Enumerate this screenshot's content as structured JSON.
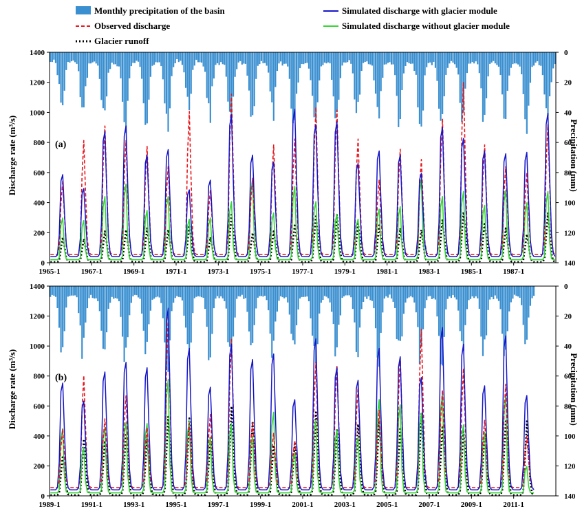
{
  "legend": {
    "precip": "Monthly precipitation of the basin",
    "observed": "Observed discharge",
    "glacier": "Glacier runoff",
    "sim_with": "Simulated discharge with glacier module",
    "sim_without": "Simulated discharge without glacier module"
  },
  "colors": {
    "precip": "#3a8fd0",
    "observed": "#e8141a",
    "sim_with": "#1414c8",
    "sim_without": "#33d633",
    "glacier": "#000000"
  },
  "chart_data": [
    {
      "panel": "(a)",
      "type": "line",
      "ylabel": "Discharge rate (m³/s)",
      "y2label": "Precipitation (mm)",
      "ylim": [
        0,
        1400
      ],
      "y2lim": [
        0,
        140
      ],
      "y2_inverted": true,
      "yticks": [
        "0",
        "200",
        "400",
        "600",
        "800",
        "1000",
        "1200",
        "1400"
      ],
      "y2ticks": [
        "0",
        "20",
        "40",
        "60",
        "80",
        "100",
        "120",
        "140"
      ],
      "x_range": [
        "1965-1",
        "1988-12"
      ],
      "xtick_labels": [
        "1965-1",
        "1967-1",
        "1969-1",
        "1971-1",
        "1973-1",
        "1975-1",
        "1977-1",
        "1979-1",
        "1981-1",
        "1983-1",
        "1985-1",
        "1987-1"
      ],
      "annual_peaks": {
        "years": [
          1965,
          1966,
          1967,
          1968,
          1969,
          1970,
          1971,
          1972,
          1973,
          1974,
          1975,
          1976,
          1977,
          1978,
          1979,
          1980,
          1981,
          1982,
          1983,
          1984,
          1985,
          1986,
          1987,
          1988
        ],
        "sim_with": [
          630,
          530,
          940,
          980,
          770,
          810,
          520,
          590,
          1060,
          770,
          720,
          1100,
          990,
          1010,
          710,
          800,
          770,
          640,
          970,
          890,
          800,
          780,
          790,
          1070
        ],
        "observed": [
          560,
          840,
          940,
          840,
          800,
          660,
          1040,
          500,
          1160,
          580,
          810,
          850,
          1070,
          1050,
          850,
          570,
          780,
          710,
          990,
          1240,
          810,
          660,
          620,
          950
        ],
        "sim_without": [
          350,
          330,
          520,
          620,
          410,
          520,
          340,
          350,
          480,
          660,
          390,
          600,
          480,
          380,
          340,
          420,
          440,
          660,
          520,
          560,
          450,
          570,
          470,
          560
        ],
        "glacier": [
          170,
          160,
          210,
          220,
          230,
          220,
          250,
          170,
          320,
          200,
          210,
          260,
          310,
          320,
          260,
          250,
          230,
          220,
          290,
          340,
          270,
          230,
          190,
          330
        ]
      },
      "precip_monthly_peak_mm": [
        40,
        45,
        50,
        55,
        48,
        52,
        40,
        45,
        55,
        50,
        46,
        54,
        50,
        48,
        44,
        48,
        50,
        56,
        52,
        48,
        46,
        50,
        54,
        52
      ]
    },
    {
      "panel": "(b)",
      "type": "line",
      "ylabel": "Discharge rate (m³/s)",
      "y2label": "Precipitation (mm)",
      "ylim": [
        0,
        1400
      ],
      "y2lim": [
        0,
        140
      ],
      "y2_inverted": true,
      "yticks": [
        "0",
        "200",
        "400",
        "600",
        "800",
        "1000",
        "1200",
        "1400"
      ],
      "y2ticks": [
        "0",
        "20",
        "40",
        "60",
        "80",
        "100",
        "120",
        "140"
      ],
      "x_range": [
        "1989-1",
        "2012-12"
      ],
      "xtick_labels": [
        "1989-1",
        "1991-1",
        "1993-1",
        "1995-1",
        "1997-1",
        "1999-1",
        "2001-1",
        "2003-1",
        "2005-1",
        "2007-1",
        "2009-1",
        "2011-1"
      ],
      "annual_peaks": {
        "years": [
          1989,
          1990,
          1991,
          1992,
          1993,
          1994,
          1995,
          1996,
          1997,
          1998,
          1999,
          2000,
          2001,
          2002,
          2003,
          2004,
          2005,
          2006,
          2007,
          2008,
          2009,
          2010,
          2011,
          2012
        ],
        "sim_with": [
          810,
          680,
          890,
          960,
          920,
          1350,
          1060,
          780,
          1090,
          980,
          1020,
          690,
          1130,
          920,
          830,
          1060,
          1000,
          850,
          1210,
          1090,
          790,
          1150,
          720,
          0
        ],
        "observed": [
          460,
          830,
          530,
          690,
          470,
          1240,
          500,
          560,
          1080,
          510,
          430,
          380,
          920,
          900,
          750,
          590,
          950,
          1150,
          730,
          880,
          520,
          770,
          410,
          0
        ],
        "sim_without": [
          530,
          380,
          540,
          580,
          570,
          920,
          590,
          460,
          570,
          470,
          660,
          340,
          600,
          520,
          460,
          760,
          720,
          650,
          810,
          560,
          500,
          790,
          230,
          0
        ],
        "glacier": [
          270,
          380,
          370,
          420,
          380,
          530,
          520,
          390,
          600,
          500,
          340,
          360,
          560,
          450,
          480,
          500,
          460,
          550,
          470,
          440,
          420,
          500,
          500,
          0
        ]
      },
      "precip_monthly_peak_mm": [
        45,
        48,
        52,
        55,
        50,
        56,
        52,
        48,
        54,
        50,
        46,
        50,
        55,
        50,
        48,
        54,
        50,
        52,
        56,
        50,
        48,
        54,
        40,
        0
      ]
    }
  ]
}
